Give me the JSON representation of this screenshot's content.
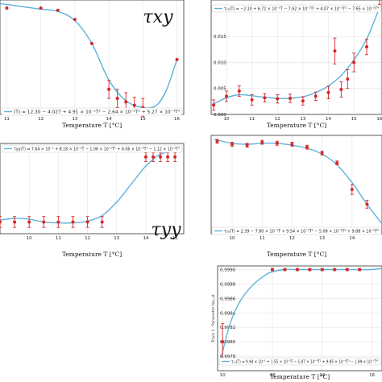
{
  "chart_data": [
    {
      "id": "txy",
      "type": "scatter",
      "big_label": "τxy",
      "fit_label": "(T) = 12.30 − 4.027 + 4.91 × 10⁻¹T² − 2.64 × 10⁻²T³ + 5.27 × 10⁻⁴T⁴",
      "xlabel": "Temperature T [°C]",
      "ylabel": "",
      "xlim": [
        10.8,
        16.2
      ],
      "ylim": [
        0,
        1
      ],
      "xticks": [
        "11",
        "12",
        "13",
        "14",
        "15",
        "16"
      ],
      "yticks": [],
      "x": [
        11,
        12,
        12.5,
        13,
        13.5,
        14,
        14.25,
        14.5,
        14.75,
        15,
        16
      ],
      "y": [
        0.93,
        0.93,
        0.91,
        0.83,
        0.62,
        0.22,
        0.14,
        0.11,
        0.08,
        0.06,
        0.48
      ],
      "err": [
        0,
        0,
        0,
        0,
        0,
        0.08,
        0.08,
        0.08,
        0.07,
        0.08,
        0
      ],
      "fit": [
        [
          10.8,
          0.97
        ],
        [
          11.5,
          0.94
        ],
        [
          12,
          0.92
        ],
        [
          12.5,
          0.9
        ],
        [
          13,
          0.82
        ],
        [
          13.5,
          0.62
        ],
        [
          14,
          0.3
        ],
        [
          14.5,
          0.12
        ],
        [
          15,
          0.06
        ],
        [
          15.4,
          0.08
        ],
        [
          15.7,
          0.22
        ],
        [
          16,
          0.48
        ]
      ]
    },
    {
      "id": "tr",
      "type": "scatter",
      "big_label": "",
      "fit_label": "τ₀₀(T) = −2.10 + 6.72 × 10⁻¹T − 7.92 × 10⁻²T² + 4.07 × 10⁻³T³ − 7.65 × 10⁻⁵T⁴",
      "xlabel": "Temperature T [°C]",
      "ylabel": "",
      "xlim": [
        9.4,
        16.1
      ],
      "ylim": [
        0,
        0.022
      ],
      "xticks": [
        "10",
        "11",
        "12",
        "13",
        "14",
        "15",
        "16"
      ],
      "yticks": [
        "0.000",
        "0.005",
        "0.010",
        "0.015",
        "0.020"
      ],
      "x": [
        9.5,
        10,
        10.5,
        11,
        11.5,
        12,
        12.5,
        13,
        13.5,
        14,
        14.25,
        14.5,
        14.75,
        15,
        15.5,
        16
      ],
      "y": [
        0.0018,
        0.0035,
        0.0045,
        0.0028,
        0.0032,
        0.003,
        0.0031,
        0.0026,
        0.0035,
        0.0042,
        0.0122,
        0.0048,
        0.0068,
        0.01,
        0.013,
        0.021
      ],
      "err": [
        0.001,
        0.001,
        0.001,
        0.001,
        0.0008,
        0.0008,
        0.0008,
        0.0008,
        0.0008,
        0.0012,
        0.0025,
        0.0015,
        0.0018,
        0.0018,
        0.0015,
        0.0012
      ],
      "fit": [
        [
          9.4,
          0.0018
        ],
        [
          10,
          0.0032
        ],
        [
          10.5,
          0.0038
        ],
        [
          11,
          0.0036
        ],
        [
          11.5,
          0.0033
        ],
        [
          12,
          0.0031
        ],
        [
          12.5,
          0.0031
        ],
        [
          13,
          0.0034
        ],
        [
          13.5,
          0.0042
        ],
        [
          14,
          0.0055
        ],
        [
          14.5,
          0.0075
        ],
        [
          15,
          0.0105
        ],
        [
          15.5,
          0.0145
        ],
        [
          16,
          0.0205
        ]
      ]
    },
    {
      "id": "tyy",
      "type": "scatter",
      "big_label": "τyy",
      "fit_label": "τyy(T) = 7.64 × 10⁻¹ + 8.18 × 10⁻²T − 1.06 × 10⁻²T² + 6.06 × 10⁻⁴T³ − 1.12 × 10⁻⁵T⁴",
      "xlabel": "Temperature T [°C]",
      "ylabel": "",
      "xlim": [
        9,
        15.3
      ],
      "ylim": [
        0,
        1
      ],
      "xticks": [
        "10",
        "11",
        "12",
        "13",
        "14",
        "15"
      ],
      "yticks": [],
      "x": [
        9,
        9.5,
        10,
        10.5,
        11,
        11.5,
        12,
        12.5,
        14,
        14.25,
        14.5,
        14.75,
        15
      ],
      "y": [
        0.13,
        0.13,
        0.13,
        0.13,
        0.13,
        0.13,
        0.13,
        0.13,
        0.85,
        0.85,
        0.85,
        0.85,
        0.85
      ],
      "err": [
        0.06,
        0.06,
        0.06,
        0.06,
        0.06,
        0.06,
        0.06,
        0.06,
        0.05,
        0.05,
        0.05,
        0.05,
        0.05
      ],
      "fit": [
        [
          9,
          0.15
        ],
        [
          9.5,
          0.17
        ],
        [
          10,
          0.16
        ],
        [
          10.5,
          0.13
        ],
        [
          11,
          0.12
        ],
        [
          11.5,
          0.12
        ],
        [
          12,
          0.14
        ],
        [
          12.5,
          0.2
        ],
        [
          13,
          0.35
        ],
        [
          13.5,
          0.55
        ],
        [
          14,
          0.75
        ],
        [
          14.5,
          0.88
        ],
        [
          15,
          0.92
        ]
      ]
    },
    {
      "id": "mr",
      "type": "scatter",
      "big_label": "",
      "fit_label": "τ₀₀(T) = 2.39 − 7.80 × 10⁻¹T + 9.54 × 10⁻²T² − 5.08 × 10⁻³T³ + 9.88 × 10⁻⁵T⁴",
      "xlabel": "Temperature T [°C]",
      "ylabel": "",
      "xlim": [
        9.3,
        15
      ],
      "ylim": [
        0,
        1
      ],
      "xticks": [
        "10",
        "11",
        "12",
        "13",
        "14"
      ],
      "yticks": [],
      "x": [
        9.5,
        10,
        10.5,
        11,
        11.5,
        12,
        12.5,
        13,
        13.5,
        14,
        14.5
      ],
      "y": [
        0.94,
        0.91,
        0.9,
        0.93,
        0.92,
        0.91,
        0.88,
        0.82,
        0.72,
        0.45,
        0.3
      ],
      "err": [
        0.02,
        0.02,
        0.02,
        0.02,
        0.02,
        0.02,
        0.02,
        0.02,
        0.02,
        0.05,
        0.04
      ],
      "fit": [
        [
          9.4,
          0.96
        ],
        [
          10,
          0.92
        ],
        [
          10.5,
          0.91
        ],
        [
          11,
          0.92
        ],
        [
          11.5,
          0.92
        ],
        [
          12,
          0.9
        ],
        [
          12.5,
          0.87
        ],
        [
          13,
          0.81
        ],
        [
          13.5,
          0.7
        ],
        [
          14,
          0.52
        ],
        [
          14.5,
          0.3
        ],
        [
          15,
          0.1
        ]
      ]
    },
    {
      "id": "br",
      "type": "scatter",
      "big_label": "",
      "fit_label": "τ₁₁(T) = 9.94 × 10⁻¹ + 1.55 × 10⁻³T − 1.87 × 10⁻⁴T² + 9.85 × 10⁻⁶T³ − 1.89 × 10⁻⁷T⁴",
      "xlabel": "Temperature T [°C]",
      "ylabel": "Trace 1 - Parameter tau_xt",
      "xlim": [
        9.8,
        16.4
      ],
      "ylim": [
        0.9976,
        0.99905
      ],
      "xticks": [
        "10",
        "12",
        "14",
        "16"
      ],
      "yticks": [
        "0.9978",
        "0.9980",
        "0.9982",
        "0.9984",
        "0.9986",
        "0.9988",
        "0.9990"
      ],
      "x": [
        10,
        12,
        12.5,
        13,
        13.5,
        14,
        14.5,
        15,
        15.5
      ],
      "y": [
        0.998,
        0.999,
        0.999,
        0.999,
        0.999,
        0.999,
        0.999,
        0.999,
        0.999
      ],
      "err": [
        0.00025,
        1.5e-05,
        1.5e-05,
        1.5e-05,
        1.5e-05,
        1.5e-05,
        1.5e-05,
        1.5e-05,
        1.5e-05
      ],
      "fit": [
        [
          9.9,
          0.99772
        ],
        [
          10.3,
          0.99825
        ],
        [
          10.7,
          0.99856
        ],
        [
          11.2,
          0.99878
        ],
        [
          11.7,
          0.99892
        ],
        [
          12,
          0.99897
        ],
        [
          12.5,
          0.999
        ],
        [
          13,
          0.999
        ],
        [
          14,
          0.999
        ],
        [
          15,
          0.999
        ],
        [
          16,
          0.999
        ],
        [
          16.4,
          0.99902
        ]
      ]
    }
  ]
}
